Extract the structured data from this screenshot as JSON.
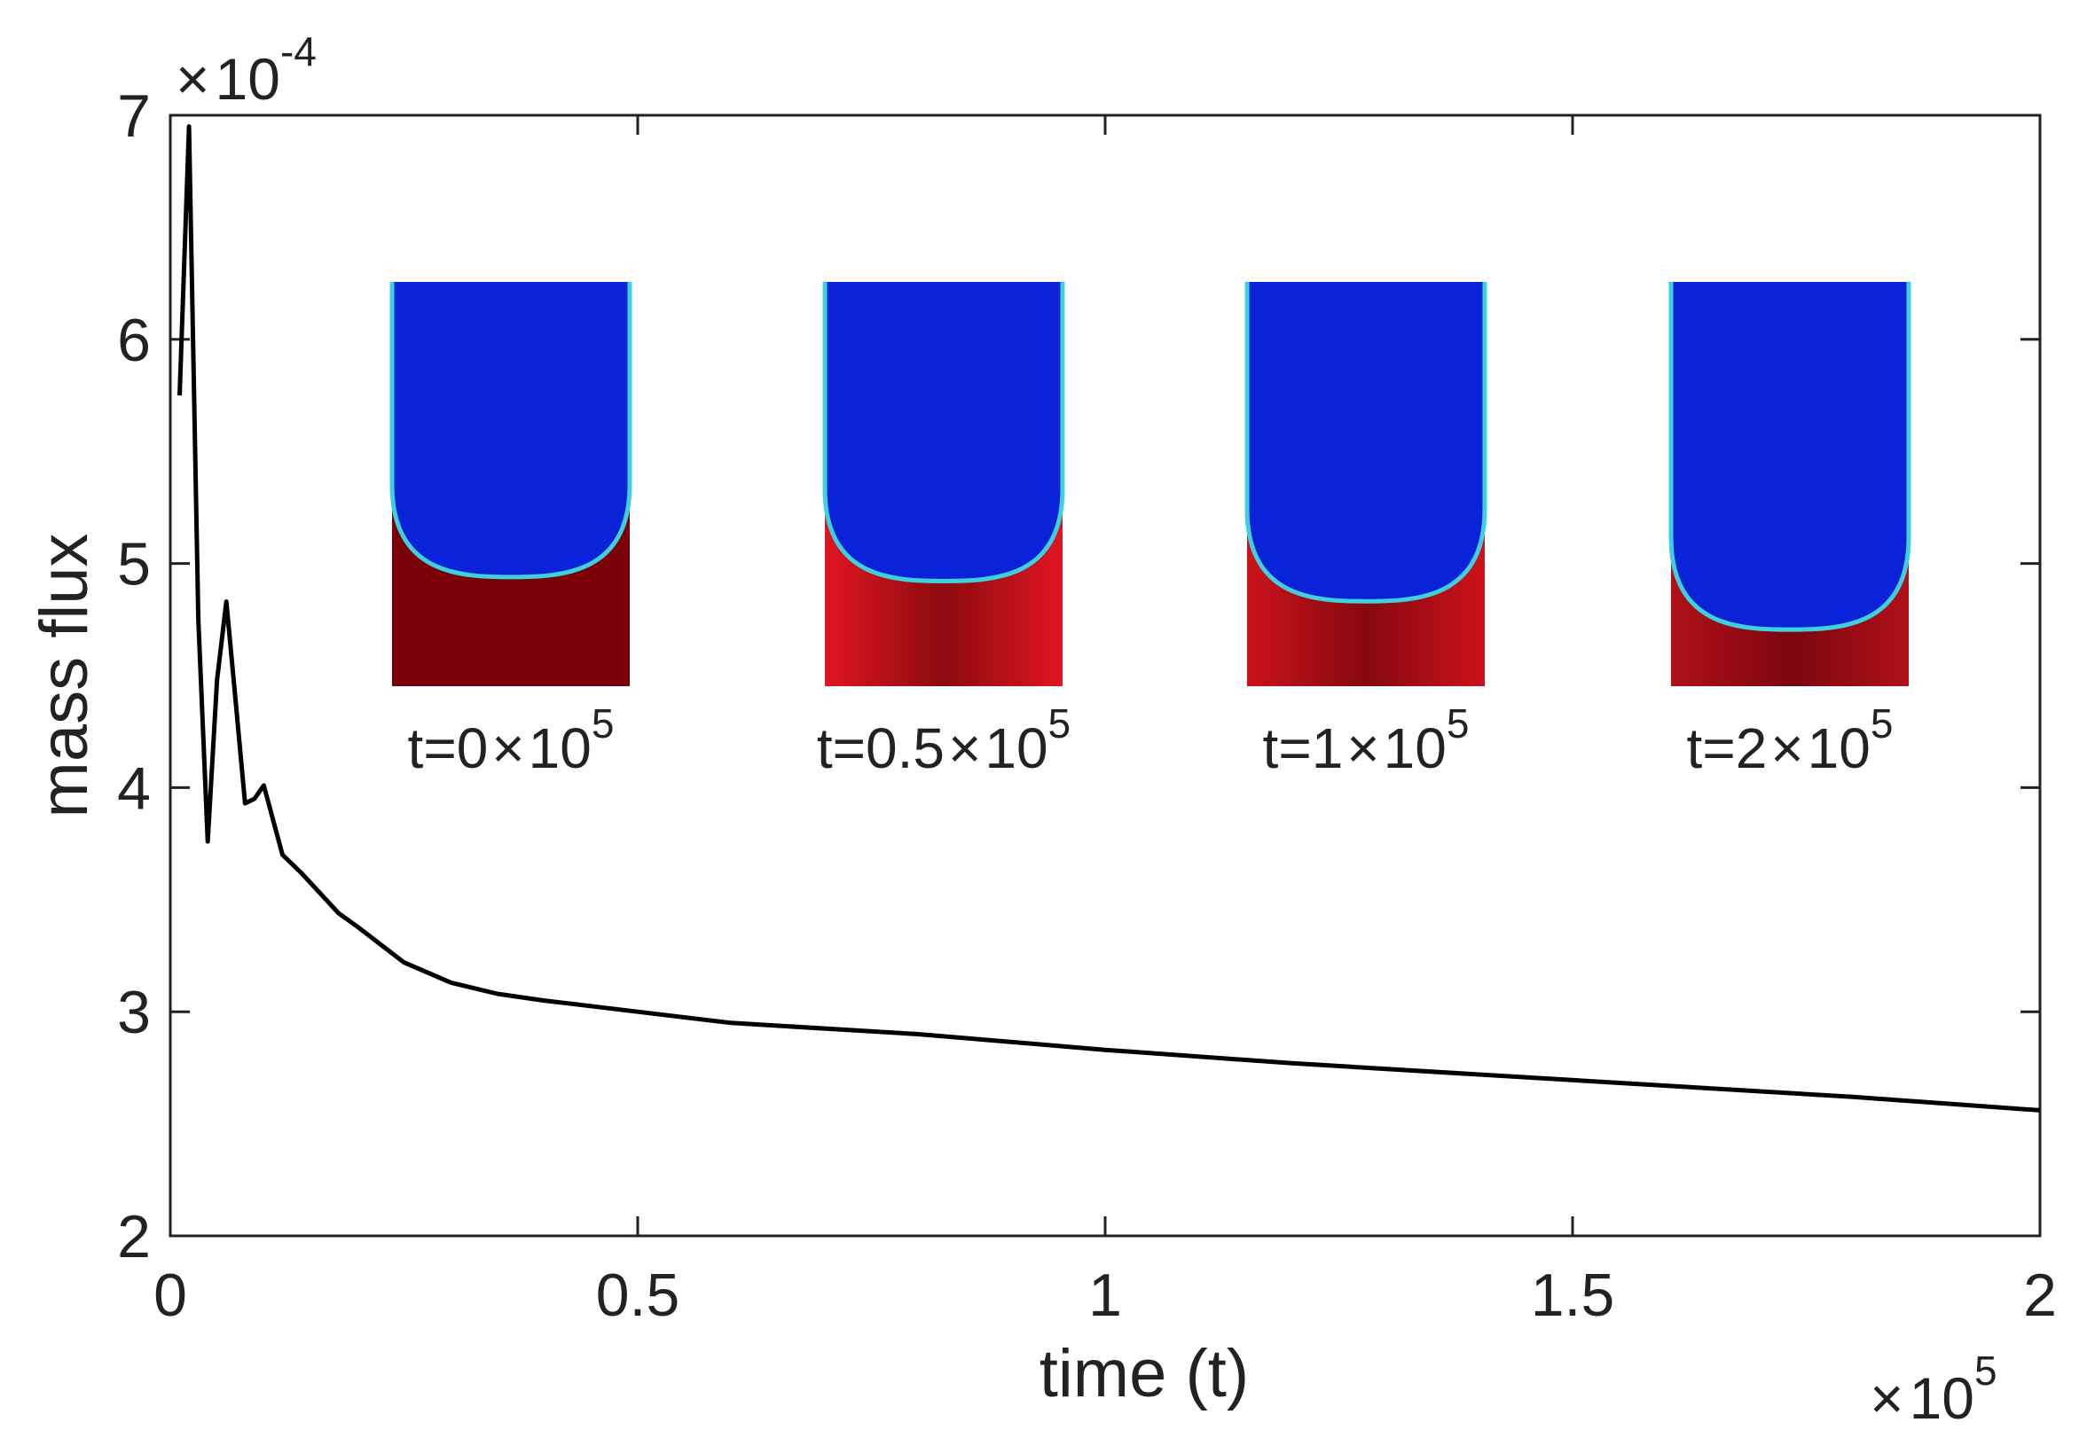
{
  "chart_data": {
    "type": "line",
    "title": "",
    "xlabel": "time (t)",
    "ylabel": "mass flux",
    "x_multiplier": {
      "times": "×",
      "base": "10",
      "exp": "5"
    },
    "y_multiplier": {
      "times": "×",
      "base": "10",
      "exp": "-4"
    },
    "xlim": [
      0,
      2
    ],
    "ylim": [
      2,
      7
    ],
    "xticks": [
      0,
      0.5,
      1,
      1.5,
      2
    ],
    "xtick_labels": [
      "0",
      "0.5",
      "1",
      "1.5",
      "2"
    ],
    "yticks": [
      2,
      3,
      4,
      5,
      6,
      7
    ],
    "ytick_labels": [
      "2",
      "3",
      "4",
      "5",
      "6",
      "7"
    ],
    "grid": false,
    "series": [
      {
        "name": "mass flux",
        "color": "#000000",
        "x": [
          0.01,
          0.02,
          0.03,
          0.04,
          0.05,
          0.06,
          0.07,
          0.08,
          0.09,
          0.1,
          0.12,
          0.14,
          0.16,
          0.18,
          0.2,
          0.25,
          0.3,
          0.35,
          0.4,
          0.5,
          0.6,
          0.8,
          1.0,
          1.2,
          1.4,
          1.6,
          1.8,
          2.0
        ],
        "y": [
          5.75,
          6.95,
          4.75,
          3.76,
          4.48,
          4.83,
          4.38,
          3.93,
          3.95,
          4.01,
          3.7,
          3.62,
          3.53,
          3.44,
          3.38,
          3.22,
          3.13,
          3.08,
          3.05,
          3.0,
          2.95,
          2.9,
          2.83,
          2.77,
          2.72,
          2.67,
          2.62,
          2.56
        ]
      }
    ],
    "insets": [
      {
        "label_prefix": "t=",
        "value": "0",
        "times": "×",
        "base": "10",
        "exp": "5",
        "interface_depth": 0.73,
        "lower_color": "#7a0008",
        "side_color": "#7a0008"
      },
      {
        "label_prefix": "t=",
        "value": "0.5",
        "times": "×",
        "base": "10",
        "exp": "5",
        "interface_depth": 0.74,
        "lower_color": "#8c0a10",
        "side_color": "#e01520"
      },
      {
        "label_prefix": "t=",
        "value": "1",
        "times": "×",
        "base": "10",
        "exp": "5",
        "interface_depth": 0.79,
        "lower_color": "#850810",
        "side_color": "#cc121c"
      },
      {
        "label_prefix": "t=",
        "value": "2",
        "times": "×",
        "base": "10",
        "exp": "5",
        "interface_depth": 0.86,
        "lower_color": "#7c0610",
        "side_color": "#b01018"
      }
    ],
    "colors": {
      "upper_phase": "#0a22d8",
      "interface": "#3fd0e0",
      "axis": "#222222",
      "line": "#000000"
    }
  }
}
